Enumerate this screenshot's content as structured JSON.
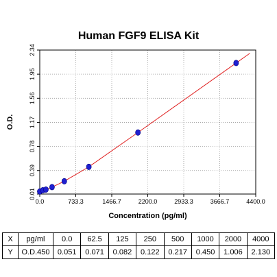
{
  "chart_data": {
    "type": "scatter",
    "title": "Human FGF9 ELISA Kit",
    "xlabel": "Concentration (pg/ml)",
    "ylabel": "O.D.",
    "xlim": [
      0,
      4400
    ],
    "ylim": [
      0.01,
      2.34
    ],
    "x_ticks": [
      "0.0",
      "733.3",
      "1466.7",
      "2200.0",
      "2933.3",
      "3666.7",
      "4400.0"
    ],
    "y_ticks": [
      "0.01",
      "0.39",
      "0.78",
      "1.17",
      "1.56",
      "1.95",
      "2.34"
    ],
    "grid": true,
    "fit_line": true,
    "point_color": "#1f1fd0",
    "line_color": "#e02020",
    "series": [
      {
        "x": [
          0,
          62.5,
          125,
          250,
          500,
          1000,
          2000,
          4000
        ],
        "values": [
          0.051,
          0.071,
          0.082,
          0.122,
          0.217,
          0.45,
          1.006,
          2.13
        ]
      }
    ]
  },
  "table": {
    "x_row": {
      "axis": "X",
      "unit": "pg/ml",
      "values": [
        "0.0",
        "62.5",
        "125",
        "250",
        "500",
        "1000",
        "2000",
        "4000"
      ]
    },
    "y_row": {
      "axis": "Y",
      "unit": "O.D.450",
      "values": [
        "0.051",
        "0.071",
        "0.082",
        "0.122",
        "0.217",
        "0.450",
        "1.006",
        "2.130"
      ]
    }
  }
}
